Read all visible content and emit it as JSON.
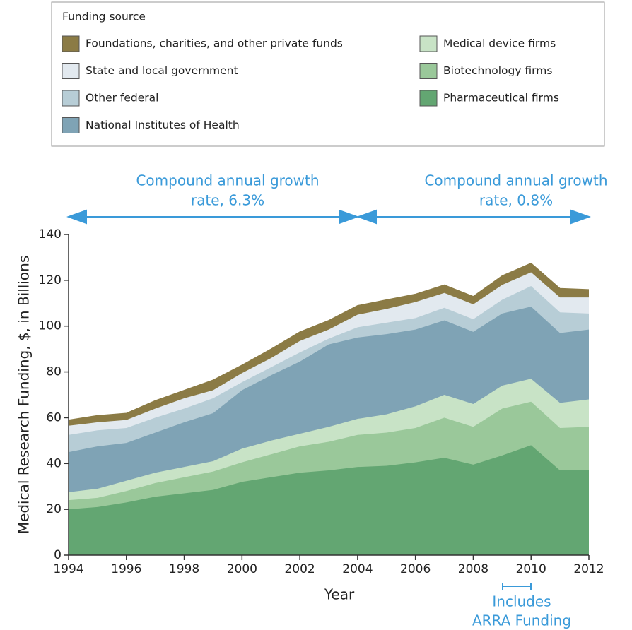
{
  "chart_data": {
    "type": "stacked_area",
    "legend_title": "Funding source",
    "x_label": "Year",
    "y_label": "Medical Research Funding, $, in Billions",
    "annotations": [
      [
        "Compound annual growth",
        "rate, 6.3%"
      ],
      [
        "Compound annual growth",
        "rate, 0.8%"
      ],
      [
        "Includes",
        "ARRA Funding"
      ]
    ],
    "x": [
      1994,
      1995,
      1996,
      1997,
      1998,
      1999,
      2000,
      2001,
      2002,
      2003,
      2004,
      2005,
      2006,
      2007,
      2008,
      2009,
      2010,
      2011,
      2012
    ],
    "xlim": [
      1994,
      2012
    ],
    "xticks": [
      1994,
      1996,
      1998,
      2000,
      2002,
      2004,
      2006,
      2008,
      2010,
      2012
    ],
    "ylim": [
      0,
      140
    ],
    "yticks": [
      0,
      20,
      40,
      60,
      80,
      100,
      120,
      140
    ],
    "series": [
      {
        "name": "Pharmaceutical firms",
        "color": "#63a672",
        "values": [
          20,
          21,
          23,
          25.5,
          27,
          28.5,
          32,
          34,
          36,
          37,
          38.5,
          39,
          40.5,
          42.5,
          39.5,
          43.5,
          48,
          37,
          37
        ]
      },
      {
        "name": "Biotechnology firms",
        "color": "#9ac89a",
        "values": [
          4,
          4,
          5,
          6,
          7,
          8,
          8.5,
          10,
          11.5,
          12.5,
          14,
          14.5,
          15,
          17.5,
          16.5,
          20.5,
          19,
          18.5,
          19
        ]
      },
      {
        "name": "Medical device firms",
        "color": "#c8e3c6",
        "values": [
          3.5,
          4,
          4.5,
          4.5,
          4.5,
          4.5,
          6,
          6,
          5.5,
          6.5,
          7,
          8,
          9.5,
          10,
          10,
          10,
          10,
          11,
          12
        ]
      },
      {
        "name": "National Institutes of Health",
        "color": "#7fa3b5",
        "values": [
          17.5,
          18.5,
          16.5,
          17.5,
          19.5,
          21,
          25.5,
          28.5,
          31.5,
          36,
          35.5,
          35,
          33.5,
          32.5,
          31.5,
          31.5,
          31.5,
          30.5,
          30.5
        ]
      },
      {
        "name": "Other federal",
        "color": "#b7cdd6",
        "values": [
          7.5,
          7,
          6.5,
          6.5,
          6,
          6.5,
          3.5,
          3.5,
          4,
          2.5,
          4.5,
          5,
          5,
          5.5,
          5.5,
          6,
          9,
          9,
          7
        ]
      },
      {
        "name": "State and local government",
        "color": "#e2e9ef",
        "values": [
          4,
          3.5,
          3.5,
          4,
          4.5,
          3.5,
          4,
          4,
          5,
          4,
          5.5,
          6,
          7,
          6.5,
          6.5,
          6.5,
          6,
          6.5,
          7
        ]
      },
      {
        "name": "Foundations, charities, and other private funds",
        "color": "#8b7b45",
        "values": [
          2.5,
          3,
          3,
          3.5,
          3.5,
          4.5,
          3.5,
          4,
          4,
          4,
          4,
          4,
          3.5,
          3.5,
          3.5,
          4,
          4,
          4,
          3.5
        ]
      }
    ]
  }
}
